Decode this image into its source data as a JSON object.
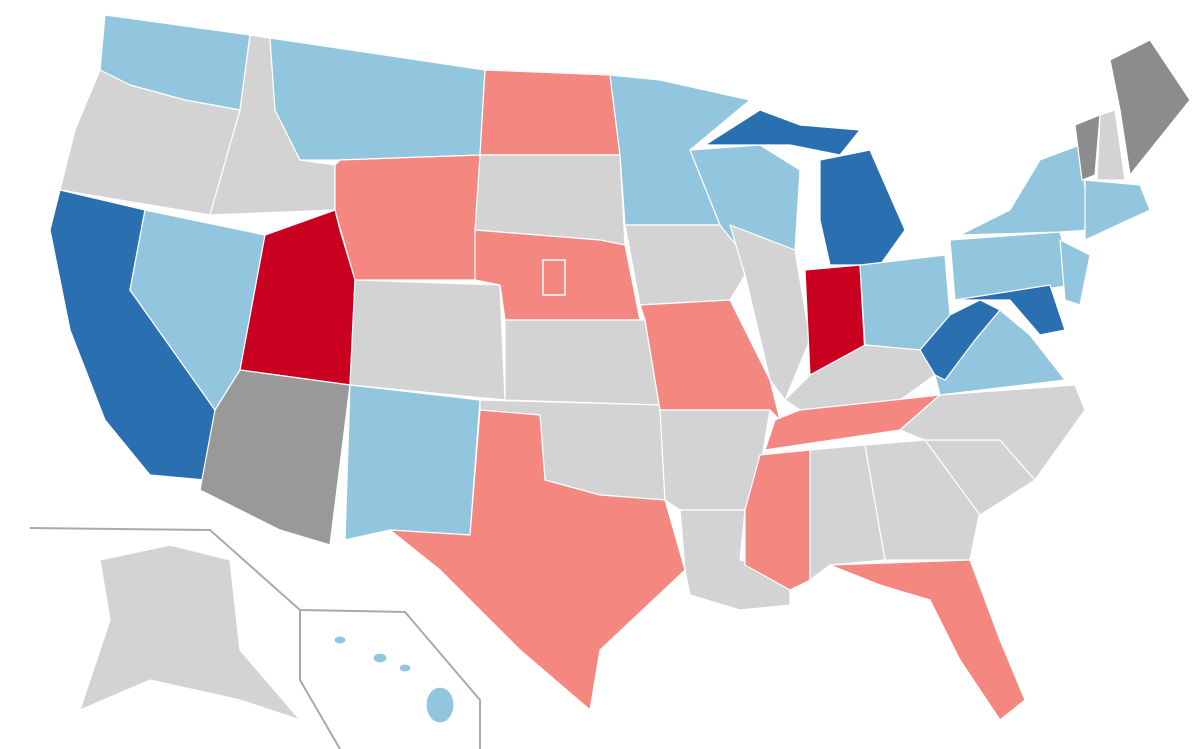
{
  "map": {
    "background": "#ffffff",
    "inset_border": "#aaaaaa",
    "regions": [
      {
        "color": "#92c5de"
      },
      {
        "color": "#d3d3d3"
      },
      {
        "color": "#2a6fb0"
      },
      {
        "color": "#92c5de"
      },
      {
        "color": "#d3d3d3"
      },
      {
        "color": "#92c5de"
      },
      {
        "color": "#f4877f"
      },
      {
        "color": "#ca0020"
      },
      {
        "color": "#d3d3d3"
      },
      {
        "color": "#999999"
      },
      {
        "color": "#92c5de"
      },
      {
        "color": "#f4877f"
      },
      {
        "color": "#d3d3d3"
      },
      {
        "color": "#f4877f"
      },
      {
        "color": "#d3d3d3"
      },
      {
        "color": "#d3d3d3"
      },
      {
        "color": "#f4877f"
      },
      {
        "color": "#92c5de"
      },
      {
        "color": "#d3d3d3"
      },
      {
        "color": "#f4877f"
      },
      {
        "color": "#d3d3d3"
      },
      {
        "color": "#d3d3d3"
      },
      {
        "color": "#92c5de"
      },
      {
        "color": "#d3d3d3"
      },
      {
        "color": "#2a6fb0"
      },
      {
        "color": "#2a6fb0"
      },
      {
        "color": "#ca0020"
      },
      {
        "color": "#92c5de"
      },
      {
        "color": "#d3d3d3"
      },
      {
        "color": "#f4877f"
      },
      {
        "color": "#f4877f"
      },
      {
        "color": "#d3d3d3"
      },
      {
        "color": "#d3d3d3"
      },
      {
        "color": "#f4877f"
      },
      {
        "color": "#d3d3d3"
      },
      {
        "color": "#d3d3d3"
      },
      {
        "color": "#92c5de"
      },
      {
        "color": "#2a6fb0"
      },
      {
        "color": "#92c5de"
      },
      {
        "color": "#2a6fb0"
      },
      {
        "color": "#92c5de"
      },
      {
        "color": "#92c5de"
      },
      {
        "color": "#8c8c8c"
      },
      {
        "color": "#d3d3d3"
      },
      {
        "color": "#8c8c8c"
      },
      {
        "color": "#92c5de"
      },
      {
        "color": "#d3d3d3"
      },
      {
        "color": "#92c5de"
      }
    ]
  }
}
